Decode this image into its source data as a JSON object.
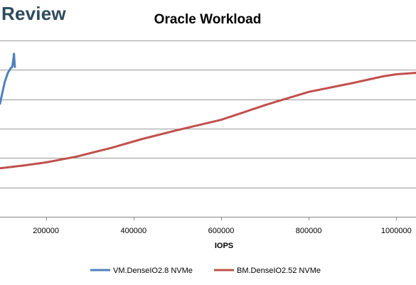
{
  "brand": {
    "text": "Review"
  },
  "chart_data": {
    "type": "line",
    "title": "Oracle Workload",
    "xlabel": "IOPS",
    "ylabel": "",
    "xlim": [
      95000,
      1045000
    ],
    "ylim": [
      0,
      6
    ],
    "x_ticks": [
      200000,
      400000,
      600000,
      800000,
      1000000
    ],
    "grid": true,
    "legend_position": "bottom",
    "series": [
      {
        "name": "VM.DenseIO2.8 NVMe",
        "color": "#4f81bd",
        "points": [
          [
            95000,
            3.85
          ],
          [
            100000,
            4.2
          ],
          [
            106000,
            4.6
          ],
          [
            113000,
            4.9
          ],
          [
            119000,
            5.05
          ],
          [
            123000,
            5.1
          ],
          [
            125000,
            5.3
          ],
          [
            127000,
            5.55
          ],
          [
            128000,
            5.3
          ],
          [
            129000,
            5.1
          ]
        ]
      },
      {
        "name": "BM.DenseIO2.52 NVMe",
        "color": "#c0504d",
        "points": [
          [
            95000,
            1.65
          ],
          [
            150000,
            1.75
          ],
          [
            200000,
            1.85
          ],
          [
            270000,
            2.05
          ],
          [
            350000,
            2.35
          ],
          [
            420000,
            2.65
          ],
          [
            500000,
            2.95
          ],
          [
            600000,
            3.3
          ],
          [
            650000,
            3.55
          ],
          [
            700000,
            3.8
          ],
          [
            800000,
            4.25
          ],
          [
            900000,
            4.55
          ],
          [
            970000,
            4.78
          ],
          [
            1000000,
            4.85
          ],
          [
            1045000,
            4.9
          ]
        ]
      }
    ]
  }
}
